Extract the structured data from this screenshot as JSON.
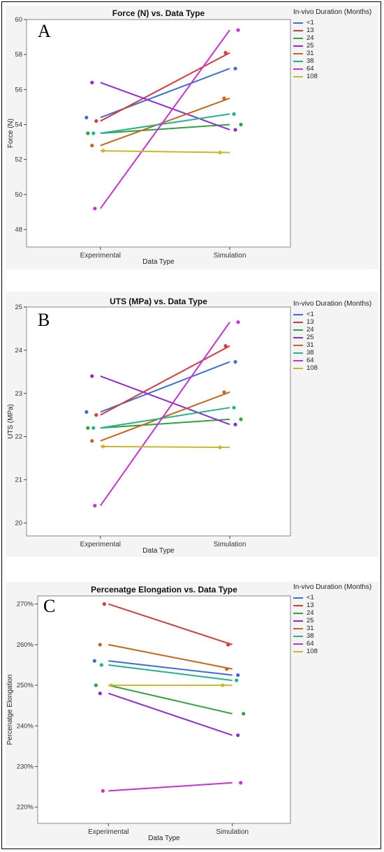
{
  "colors": {
    "<1": "#3b6fd6",
    "13": "#d63b3b",
    "24": "#2ea33e",
    "25": "#8e2bd6",
    "31": "#c8651c",
    "38": "#22b38a",
    "64": "#c931d6",
    "108": "#c9b92a"
  },
  "chart_data": [
    {
      "type": "line",
      "panel_letter": "A",
      "title": "Force (N) vs. Data Type",
      "xlabel": "Data Type",
      "ylabel": "Force (N)",
      "categories": [
        "Experimental",
        "Simulation"
      ],
      "ylim": [
        47,
        60
      ],
      "yticks": [
        48,
        50,
        52,
        54,
        56,
        58,
        60
      ],
      "ytick_labels": [
        "48",
        "50",
        "52",
        "54",
        "56",
        "58",
        "60"
      ],
      "grid": false,
      "legend_title": "In-vivo Duration (Months)",
      "legend_position": "right",
      "series": [
        {
          "name": "<1",
          "points": [
            54.4,
            57.2
          ],
          "fit": [
            54.4,
            57.2
          ]
        },
        {
          "name": "13",
          "points": [
            54.2,
            58.1
          ],
          "fit": [
            54.2,
            58.1
          ]
        },
        {
          "name": "24",
          "points": [
            53.5,
            54.0
          ],
          "fit": [
            53.5,
            54.0
          ]
        },
        {
          "name": "25",
          "points": [
            56.4,
            53.7
          ],
          "fit": [
            56.4,
            53.7
          ]
        },
        {
          "name": "31",
          "points": [
            52.8,
            55.5
          ],
          "fit": [
            52.8,
            55.5
          ]
        },
        {
          "name": "38",
          "points": [
            53.5,
            54.6
          ],
          "fit": [
            53.5,
            54.6
          ]
        },
        {
          "name": "64",
          "points": [
            49.2,
            59.4
          ],
          "fit": [
            49.2,
            59.4
          ]
        },
        {
          "name": "108",
          "points": [
            52.5,
            52.4
          ],
          "fit": [
            52.5,
            52.4
          ]
        }
      ]
    },
    {
      "type": "line",
      "panel_letter": "B",
      "title": "UTS (MPa) vs. Data Type",
      "xlabel": "Data Type",
      "ylabel": "UTS (MPa)",
      "categories": [
        "Experimental",
        "Simulation"
      ],
      "ylim": [
        19.7,
        25
      ],
      "yticks": [
        20,
        21,
        22,
        23,
        24,
        25
      ],
      "ytick_labels": [
        "20",
        "21",
        "22",
        "23",
        "24",
        "25"
      ],
      "grid": false,
      "legend_title": "In-vivo Duration (Months)",
      "legend_position": "right",
      "series": [
        {
          "name": "<1",
          "points": [
            22.57,
            23.73
          ],
          "fit": [
            22.57,
            23.73
          ]
        },
        {
          "name": "13",
          "points": [
            22.5,
            24.1
          ],
          "fit": [
            22.5,
            24.1
          ]
        },
        {
          "name": "24",
          "points": [
            22.2,
            22.4
          ],
          "fit": [
            22.2,
            22.4
          ]
        },
        {
          "name": "25",
          "points": [
            23.4,
            22.28
          ],
          "fit": [
            23.4,
            22.28
          ]
        },
        {
          "name": "31",
          "points": [
            21.9,
            23.03
          ],
          "fit": [
            21.9,
            23.03
          ]
        },
        {
          "name": "38",
          "points": [
            22.2,
            22.67
          ],
          "fit": [
            22.2,
            22.67
          ]
        },
        {
          "name": "64",
          "points": [
            20.4,
            24.65
          ],
          "fit": [
            20.4,
            24.65
          ]
        },
        {
          "name": "108",
          "points": [
            21.77,
            21.75
          ],
          "fit": [
            21.77,
            21.75
          ]
        }
      ]
    },
    {
      "type": "line",
      "panel_letter": "C",
      "title": "Percenatge Elongation vs. Data Type",
      "xlabel": "Data Type",
      "ylabel": "Percenatge Elongation",
      "categories": [
        "Experimental",
        "Simulation"
      ],
      "ylim": [
        216,
        272
      ],
      "yticks": [
        220,
        230,
        240,
        250,
        260,
        270
      ],
      "ytick_labels": [
        "220%",
        "230%",
        "240%",
        "250%",
        "260%",
        "270%"
      ],
      "grid": false,
      "legend_title": "In-vivo Duration (Months)",
      "legend_position": "right",
      "series": [
        {
          "name": "<1",
          "points": [
            256,
            252.5
          ],
          "fit": [
            256,
            252.5
          ]
        },
        {
          "name": "13",
          "points": [
            270,
            260
          ],
          "fit": [
            270,
            260
          ]
        },
        {
          "name": "24",
          "points": [
            250,
            243
          ],
          "fit": [
            250,
            243
          ]
        },
        {
          "name": "25",
          "points": [
            248,
            237.7
          ],
          "fit": [
            248,
            237.7
          ]
        },
        {
          "name": "31",
          "points": [
            260,
            254
          ],
          "fit": [
            260,
            254
          ]
        },
        {
          "name": "38",
          "points": [
            255,
            251.2
          ],
          "fit": [
            255,
            251.2
          ]
        },
        {
          "name": "64",
          "points": [
            224,
            226
          ],
          "fit": [
            224,
            226
          ]
        },
        {
          "name": "108",
          "points": [
            250,
            250
          ],
          "fit": [
            250,
            250
          ]
        }
      ]
    }
  ]
}
